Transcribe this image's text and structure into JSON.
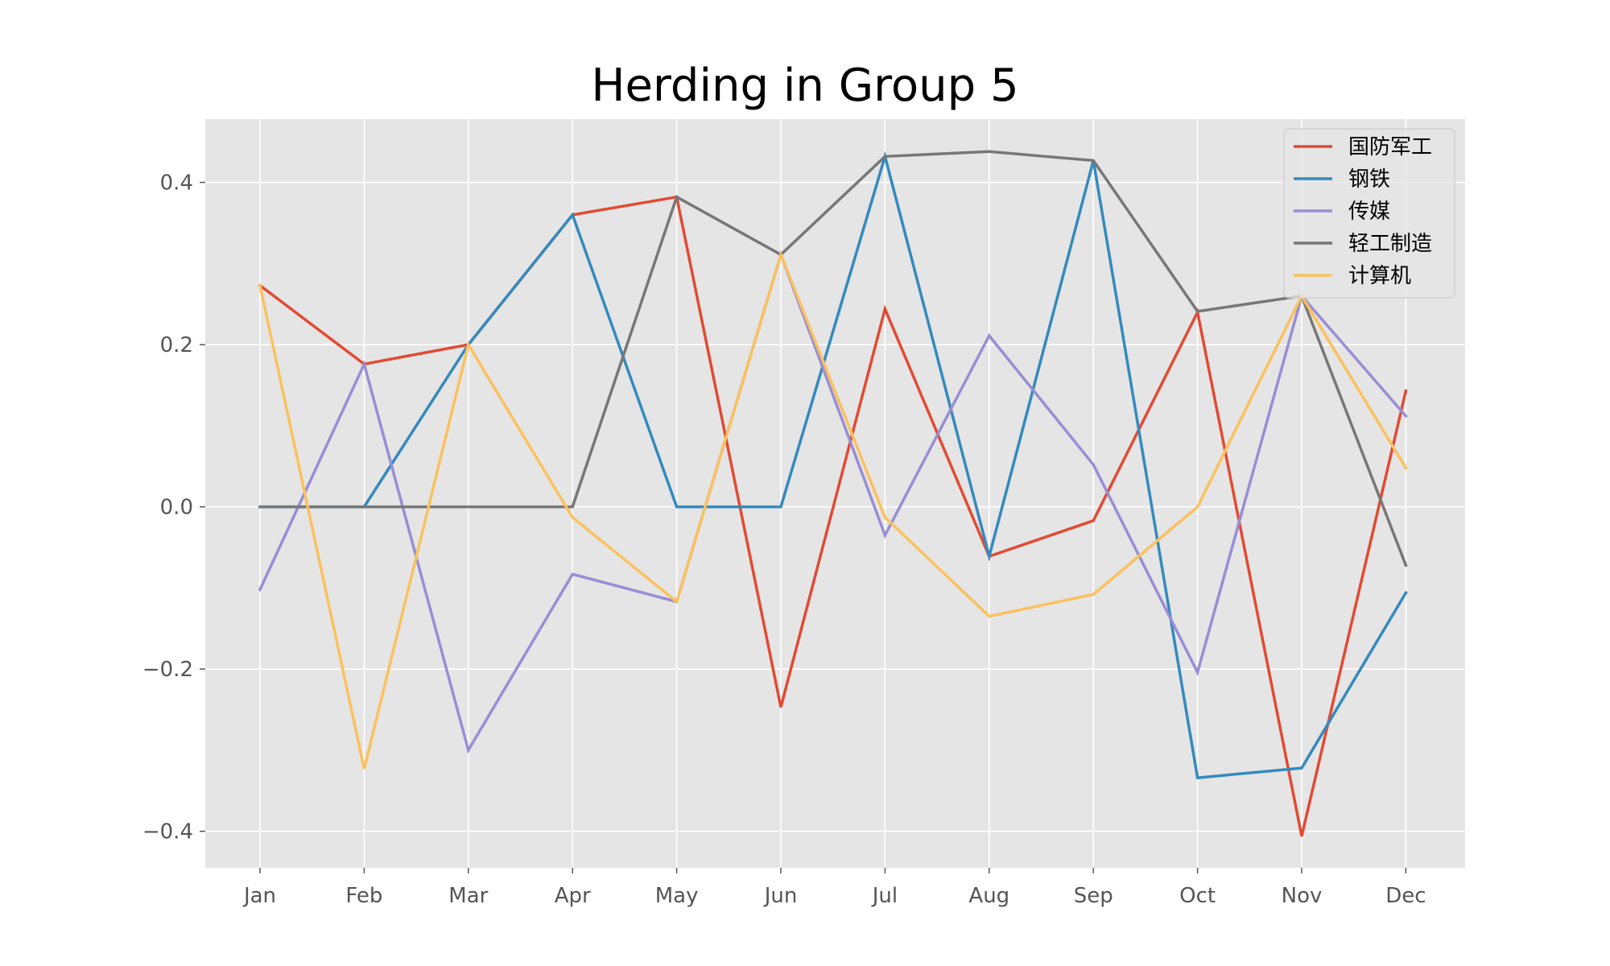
{
  "chart_data": {
    "type": "line",
    "title": "Herding in Group 5",
    "xlabel": "",
    "ylabel": "",
    "categories": [
      "Jan",
      "Feb",
      "Mar",
      "Apr",
      "May",
      "Jun",
      "Jul",
      "Aug",
      "Sep",
      "Oct",
      "Nov",
      "Dec"
    ],
    "yticks": [
      -0.4,
      -0.2,
      0.0,
      0.2,
      0.4
    ],
    "ytick_labels": [
      "−0.4",
      "−0.2",
      "0.0",
      "0.2",
      "0.4"
    ],
    "ylim": [
      -0.445,
      0.478
    ],
    "grid": true,
    "legend_position": "top-right",
    "series": [
      {
        "name": "国防军工",
        "color": "#E24A33",
        "values": [
          0.273,
          0.176,
          0.2,
          0.36,
          0.382,
          -0.247,
          0.244,
          -0.061,
          -0.017,
          0.24,
          -0.406,
          0.143
        ]
      },
      {
        "name": "钢铁",
        "color": "#348ABD",
        "values": [
          0.0,
          0.0,
          0.2,
          0.36,
          0.0,
          0.0,
          0.432,
          -0.061,
          0.427,
          -0.334,
          -0.322,
          -0.106
        ]
      },
      {
        "name": "传媒",
        "color": "#988ED5",
        "values": [
          -0.102,
          0.176,
          -0.3,
          -0.083,
          -0.117,
          0.311,
          -0.035,
          0.211,
          0.052,
          -0.204,
          0.26,
          0.112
        ]
      },
      {
        "name": "轻工制造",
        "color": "#777777",
        "values": [
          0.0,
          0.0,
          0.0,
          0.0,
          0.382,
          0.311,
          0.432,
          0.438,
          0.427,
          0.241,
          0.26,
          -0.072
        ]
      },
      {
        "name": "计算机",
        "color": "#FBC15E",
        "values": [
          0.273,
          -0.323,
          0.2,
          -0.013,
          -0.117,
          0.311,
          -0.013,
          -0.135,
          -0.108,
          0.0,
          0.26,
          0.048
        ]
      }
    ]
  }
}
